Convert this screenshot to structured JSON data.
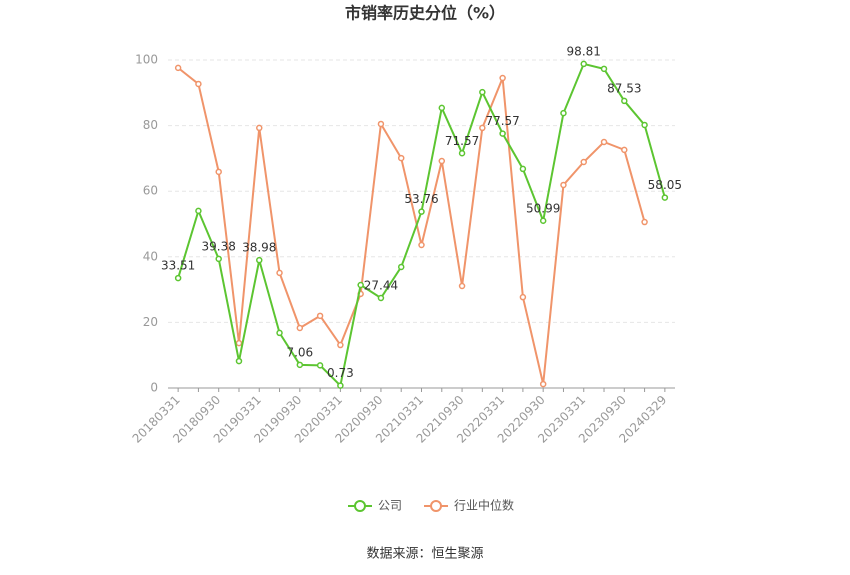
{
  "chart_data": {
    "type": "line",
    "title": "市销率历史分位（%）",
    "source": "数据来源：恒生聚源",
    "categories": [
      "20180331",
      null,
      "20180930",
      null,
      "20190331",
      null,
      "20190930",
      null,
      "20200331",
      null,
      "20200930",
      null,
      "20210331",
      null,
      "20210930",
      null,
      "20220331",
      null,
      "20220930",
      null,
      "20230331",
      null,
      "20230930",
      null,
      "20240329"
    ],
    "series": [
      {
        "name": "公司",
        "color": "#5cc531",
        "values": [
          33.51,
          54.0,
          39.38,
          8.2,
          38.98,
          16.8,
          7.06,
          6.9,
          0.73,
          31.4,
          27.44,
          36.9,
          53.76,
          85.4,
          71.57,
          90.2,
          77.57,
          66.8,
          50.99,
          83.8,
          98.81,
          97.3,
          87.53,
          80.2,
          58.05
        ],
        "value_labels": [
          "33.51",
          null,
          "39.38",
          null,
          "38.98",
          null,
          "7.06",
          null,
          "0.73",
          null,
          "27.44",
          null,
          "53.76",
          null,
          "71.57",
          null,
          "77.57",
          null,
          "50.99",
          null,
          "98.81",
          null,
          "87.53",
          null,
          "58.05"
        ]
      },
      {
        "name": "行业中位数",
        "color": "#f0946a",
        "values": [
          97.6,
          92.7,
          65.9,
          13.7,
          79.3,
          35.1,
          18.3,
          22.0,
          13.1,
          28.7,
          80.5,
          70.1,
          43.6,
          69.2,
          31.1,
          79.3,
          94.5,
          27.7,
          1.2,
          61.9,
          68.9,
          75.0,
          72.6,
          50.6,
          null
        ]
      }
    ],
    "ylim": [
      0,
      100
    ],
    "yticks": [
      0,
      20,
      40,
      60,
      80,
      100
    ],
    "grid": true
  }
}
